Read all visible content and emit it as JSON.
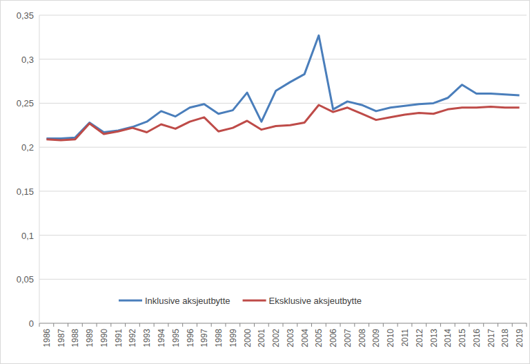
{
  "chart_data": {
    "type": "line",
    "categories": [
      "1986",
      "1987",
      "1988",
      "1989",
      "1990",
      "1991",
      "1992",
      "1993",
      "1994",
      "1995",
      "1996",
      "1997",
      "1998",
      "1999",
      "2000",
      "2001",
      "2002",
      "2003",
      "2004",
      "2005",
      "2006",
      "2007",
      "2008",
      "2009",
      "2010",
      "2011",
      "2012",
      "2013",
      "2014",
      "2015",
      "2016",
      "2017",
      "2018",
      "2019"
    ],
    "series": [
      {
        "name": "Inklusive aksjeutbytte",
        "color": "#4a7ebb",
        "values": [
          0.21,
          0.21,
          0.211,
          0.228,
          0.217,
          0.219,
          0.223,
          0.229,
          0.241,
          0.235,
          0.245,
          0.249,
          0.238,
          0.242,
          0.262,
          0.229,
          0.264,
          0.274,
          0.283,
          0.327,
          0.243,
          0.252,
          0.248,
          0.241,
          0.245,
          0.247,
          0.249,
          0.25,
          0.256,
          0.271,
          0.261,
          0.261,
          0.26,
          0.259
        ]
      },
      {
        "name": "Eksklusive aksjeutbytte",
        "color": "#be4b48",
        "values": [
          0.209,
          0.208,
          0.209,
          0.227,
          0.215,
          0.218,
          0.222,
          0.217,
          0.226,
          0.221,
          0.229,
          0.234,
          0.218,
          0.222,
          0.23,
          0.22,
          0.224,
          0.225,
          0.228,
          0.248,
          0.24,
          0.245,
          0.238,
          0.231,
          0.234,
          0.237,
          0.239,
          0.238,
          0.243,
          0.245,
          0.245,
          0.246,
          0.245,
          0.245
        ]
      }
    ],
    "ylim": [
      0,
      0.35
    ],
    "yticks": [
      0,
      {
        "value": 0.05,
        "label": "0,05"
      },
      {
        "value": 0.1,
        "label": "0,1"
      },
      {
        "value": 0.15,
        "label": "0,15"
      },
      {
        "value": 0.2,
        "label": "0,2"
      },
      {
        "value": 0.25,
        "label": "0,25"
      },
      {
        "value": 0.3,
        "label": "0,3"
      },
      {
        "value": 0.35,
        "label": "0,35"
      }
    ],
    "grid": true,
    "legend": "bottom"
  }
}
